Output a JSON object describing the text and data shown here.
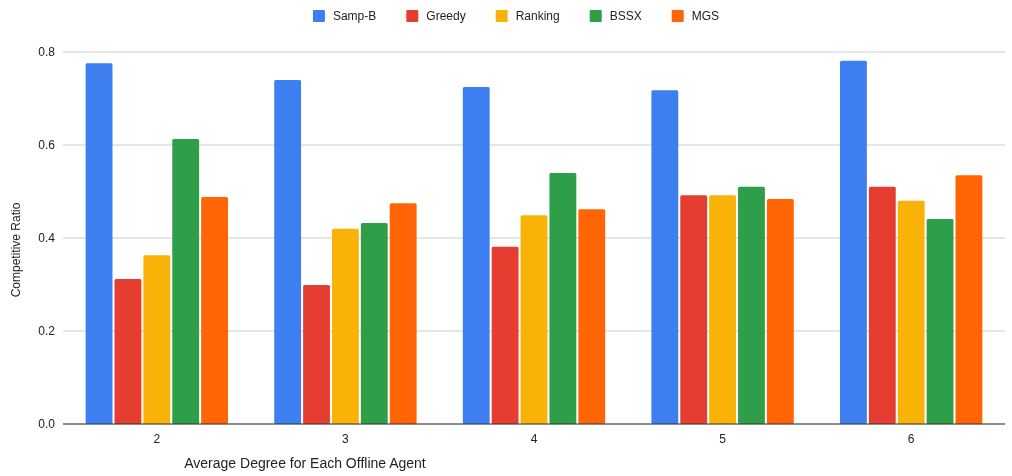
{
  "chart_data": {
    "type": "bar",
    "xlabel": "Average Degree for Each Offline Agent",
    "ylabel": "Competitive Ratio",
    "categories": [
      "2",
      "3",
      "4",
      "5",
      "6"
    ],
    "series": [
      {
        "name": "Samp-B",
        "color": "#3d7ef0",
        "values": [
          0.776,
          0.74,
          0.725,
          0.718,
          0.781
        ]
      },
      {
        "name": "Greedy",
        "color": "#e53d30",
        "values": [
          0.312,
          0.299,
          0.381,
          0.492,
          0.51
        ]
      },
      {
        "name": "Ranking",
        "color": "#f9b308",
        "values": [
          0.363,
          0.42,
          0.449,
          0.492,
          0.48
        ]
      },
      {
        "name": "BSSX",
        "color": "#2f9e48",
        "values": [
          0.613,
          0.432,
          0.54,
          0.51,
          0.441
        ]
      },
      {
        "name": "MGS",
        "color": "#ff6505",
        "values": [
          0.488,
          0.475,
          0.462,
          0.484,
          0.535
        ]
      }
    ],
    "ylim": [
      0,
      0.8
    ],
    "yticks": [
      {
        "value": 0,
        "label": "0.0"
      },
      0.2,
      0.4,
      0.6,
      0.8
    ],
    "grid": "y",
    "legend": "top"
  }
}
